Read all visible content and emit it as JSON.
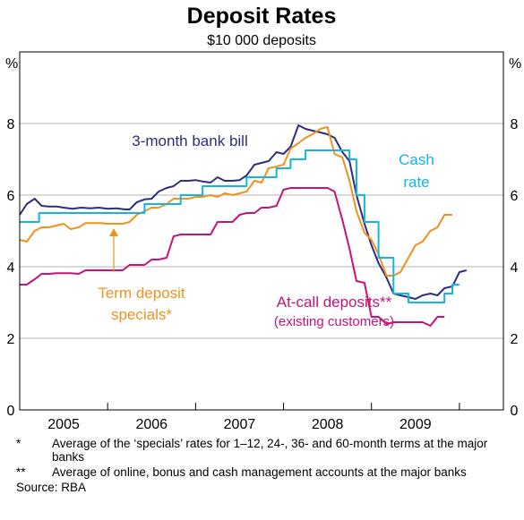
{
  "chart_data": {
    "type": "line",
    "title": "Deposit Rates",
    "subtitle": "$10 000 deposits",
    "ylabel_left": "%",
    "ylabel_right": "%",
    "ylim": [
      0,
      10
    ],
    "yticks": [
      0,
      2,
      4,
      6,
      8
    ],
    "xlim": [
      2004.5,
      2010.0
    ],
    "year_labels": [
      "2005",
      "2006",
      "2007",
      "2008",
      "2009"
    ],
    "year_label_positions": [
      2005.0,
      2006.0,
      2007.0,
      2008.0,
      2009.0
    ],
    "year_boundaries": [
      2005.5,
      2006.5,
      2007.5,
      2008.5,
      2009.5
    ],
    "grid": true,
    "colors": {
      "bank_bill": "#2e2e7e",
      "term_deposit": "#f0921e",
      "cash_rate": "#14b4e6",
      "at_call": "#c8127a",
      "grid": "#b4b4b4"
    },
    "series": [
      {
        "key": "bank_bill",
        "name": "3-month bank bill",
        "step": false,
        "points": [
          [
            2004.5,
            5.45
          ],
          [
            2004.58,
            5.75
          ],
          [
            2004.67,
            5.9
          ],
          [
            2004.75,
            5.7
          ],
          [
            2004.83,
            5.68
          ],
          [
            2004.92,
            5.68
          ],
          [
            2005.0,
            5.65
          ],
          [
            2005.1,
            5.62
          ],
          [
            2005.2,
            5.65
          ],
          [
            2005.3,
            5.63
          ],
          [
            2005.4,
            5.65
          ],
          [
            2005.5,
            5.62
          ],
          [
            2005.6,
            5.63
          ],
          [
            2005.7,
            5.6
          ],
          [
            2005.75,
            5.6
          ],
          [
            2005.83,
            5.8
          ],
          [
            2005.92,
            5.88
          ],
          [
            2006.0,
            5.9
          ],
          [
            2006.08,
            6.1
          ],
          [
            2006.17,
            6.2
          ],
          [
            2006.25,
            6.25
          ],
          [
            2006.33,
            6.4
          ],
          [
            2006.42,
            6.4
          ],
          [
            2006.5,
            6.42
          ],
          [
            2006.58,
            6.38
          ],
          [
            2006.67,
            6.35
          ],
          [
            2006.75,
            6.5
          ],
          [
            2006.83,
            6.4
          ],
          [
            2006.92,
            6.4
          ],
          [
            2007.0,
            6.42
          ],
          [
            2007.08,
            6.55
          ],
          [
            2007.17,
            6.85
          ],
          [
            2007.25,
            6.9
          ],
          [
            2007.33,
            6.95
          ],
          [
            2007.42,
            7.2
          ],
          [
            2007.5,
            7.15
          ],
          [
            2007.58,
            7.35
          ],
          [
            2007.67,
            7.95
          ],
          [
            2007.75,
            7.85
          ],
          [
            2007.83,
            7.8
          ],
          [
            2007.92,
            7.75
          ],
          [
            2008.0,
            7.7
          ],
          [
            2008.08,
            7.6
          ],
          [
            2008.17,
            7.2
          ],
          [
            2008.25,
            6.95
          ],
          [
            2008.33,
            6.0
          ],
          [
            2008.42,
            5.2
          ],
          [
            2008.5,
            4.6
          ],
          [
            2008.58,
            4.1
          ],
          [
            2008.67,
            3.7
          ],
          [
            2008.75,
            3.25
          ],
          [
            2008.83,
            3.2
          ],
          [
            2008.92,
            3.15
          ],
          [
            2009.0,
            3.1
          ],
          [
            2009.08,
            3.2
          ],
          [
            2009.17,
            3.25
          ],
          [
            2009.25,
            3.2
          ],
          [
            2009.33,
            3.4
          ],
          [
            2009.42,
            3.45
          ],
          [
            2009.5,
            3.85
          ],
          [
            2009.58,
            3.9
          ]
        ]
      },
      {
        "key": "term_deposit",
        "name": "Term deposit specials*",
        "step": false,
        "points": [
          [
            2004.5,
            4.75
          ],
          [
            2004.58,
            4.7
          ],
          [
            2004.67,
            5.0
          ],
          [
            2004.75,
            5.1
          ],
          [
            2004.83,
            5.1
          ],
          [
            2004.92,
            5.15
          ],
          [
            2005.0,
            5.2
          ],
          [
            2005.08,
            5.05
          ],
          [
            2005.17,
            5.1
          ],
          [
            2005.25,
            5.22
          ],
          [
            2005.33,
            5.22
          ],
          [
            2005.42,
            5.22
          ],
          [
            2005.5,
            5.2
          ],
          [
            2005.58,
            5.2
          ],
          [
            2005.67,
            5.2
          ],
          [
            2005.75,
            5.25
          ],
          [
            2005.83,
            5.45
          ],
          [
            2005.92,
            5.55
          ],
          [
            2006.0,
            5.65
          ],
          [
            2006.08,
            5.65
          ],
          [
            2006.17,
            5.75
          ],
          [
            2006.25,
            5.9
          ],
          [
            2006.33,
            5.9
          ],
          [
            2006.42,
            5.9
          ],
          [
            2006.5,
            5.95
          ],
          [
            2006.58,
            5.95
          ],
          [
            2006.67,
            6.0
          ],
          [
            2006.75,
            5.95
          ],
          [
            2006.83,
            6.05
          ],
          [
            2006.92,
            6.0
          ],
          [
            2007.0,
            6.05
          ],
          [
            2007.08,
            6.1
          ],
          [
            2007.17,
            6.4
          ],
          [
            2007.25,
            6.35
          ],
          [
            2007.33,
            6.75
          ],
          [
            2007.42,
            6.8
          ],
          [
            2007.5,
            6.85
          ],
          [
            2007.58,
            7.3
          ],
          [
            2007.67,
            7.45
          ],
          [
            2007.75,
            7.6
          ],
          [
            2007.83,
            7.7
          ],
          [
            2007.92,
            7.85
          ],
          [
            2008.0,
            7.9
          ],
          [
            2008.08,
            7.15
          ],
          [
            2008.17,
            7.05
          ],
          [
            2008.25,
            6.4
          ],
          [
            2008.33,
            5.55
          ],
          [
            2008.42,
            4.95
          ],
          [
            2008.5,
            4.75
          ],
          [
            2008.58,
            4.35
          ],
          [
            2008.67,
            3.75
          ],
          [
            2008.75,
            3.75
          ],
          [
            2008.83,
            3.85
          ],
          [
            2008.92,
            4.25
          ],
          [
            2009.0,
            4.6
          ],
          [
            2009.08,
            4.7
          ],
          [
            2009.17,
            5.0
          ],
          [
            2009.25,
            5.1
          ],
          [
            2009.33,
            5.45
          ],
          [
            2009.42,
            5.45
          ]
        ]
      },
      {
        "key": "cash_rate",
        "name": "Cash rate",
        "step": true,
        "points": [
          [
            2004.5,
            5.25
          ],
          [
            2004.72,
            5.5
          ],
          [
            2005.92,
            5.75
          ],
          [
            2006.33,
            6.0
          ],
          [
            2006.58,
            6.25
          ],
          [
            2007.08,
            6.5
          ],
          [
            2007.42,
            6.75
          ],
          [
            2007.58,
            7.0
          ],
          [
            2007.75,
            7.25
          ],
          [
            2008.25,
            7.0
          ],
          [
            2008.33,
            6.0
          ],
          [
            2008.42,
            5.25
          ],
          [
            2008.58,
            4.25
          ],
          [
            2008.75,
            3.25
          ],
          [
            2008.92,
            3.0
          ],
          [
            2009.33,
            3.25
          ],
          [
            2009.42,
            3.5
          ],
          [
            2009.5,
            3.5
          ]
        ]
      },
      {
        "key": "at_call",
        "name": "At-call deposits**",
        "step": false,
        "points": [
          [
            2004.5,
            3.5
          ],
          [
            2004.58,
            3.5
          ],
          [
            2004.67,
            3.65
          ],
          [
            2004.75,
            3.8
          ],
          [
            2004.83,
            3.8
          ],
          [
            2004.92,
            3.82
          ],
          [
            2005.0,
            3.82
          ],
          [
            2005.08,
            3.82
          ],
          [
            2005.17,
            3.8
          ],
          [
            2005.25,
            3.9
          ],
          [
            2005.33,
            3.9
          ],
          [
            2005.42,
            3.9
          ],
          [
            2005.5,
            3.9
          ],
          [
            2005.58,
            3.9
          ],
          [
            2005.67,
            3.9
          ],
          [
            2005.75,
            4.05
          ],
          [
            2005.83,
            4.05
          ],
          [
            2005.92,
            4.05
          ],
          [
            2006.0,
            4.2
          ],
          [
            2006.08,
            4.2
          ],
          [
            2006.17,
            4.25
          ],
          [
            2006.25,
            4.85
          ],
          [
            2006.33,
            4.9
          ],
          [
            2006.42,
            4.9
          ],
          [
            2006.5,
            4.9
          ],
          [
            2006.58,
            4.9
          ],
          [
            2006.67,
            4.9
          ],
          [
            2006.75,
            5.25
          ],
          [
            2006.83,
            5.25
          ],
          [
            2006.92,
            5.25
          ],
          [
            2007.0,
            5.45
          ],
          [
            2007.08,
            5.5
          ],
          [
            2007.17,
            5.5
          ],
          [
            2007.25,
            5.65
          ],
          [
            2007.33,
            5.65
          ],
          [
            2007.42,
            5.7
          ],
          [
            2007.5,
            6.15
          ],
          [
            2007.58,
            6.2
          ],
          [
            2007.67,
            6.2
          ],
          [
            2007.75,
            6.2
          ],
          [
            2007.83,
            6.2
          ],
          [
            2007.92,
            6.2
          ],
          [
            2008.0,
            6.2
          ],
          [
            2008.08,
            6.1
          ],
          [
            2008.17,
            5.3
          ],
          [
            2008.25,
            4.5
          ],
          [
            2008.33,
            3.6
          ],
          [
            2008.42,
            3.55
          ],
          [
            2008.5,
            2.6
          ],
          [
            2008.58,
            2.6
          ],
          [
            2008.67,
            2.4
          ],
          [
            2008.75,
            2.45
          ],
          [
            2008.83,
            2.45
          ],
          [
            2008.92,
            2.45
          ],
          [
            2009.0,
            2.45
          ],
          [
            2009.08,
            2.45
          ],
          [
            2009.17,
            2.35
          ],
          [
            2009.25,
            2.6
          ],
          [
            2009.33,
            2.6
          ]
        ]
      }
    ],
    "annotations": [
      {
        "key": "bank_bill",
        "lines": [
          "3-month bank bill"
        ],
        "color": "#2e2e7e"
      },
      {
        "key": "cash_rate",
        "lines": [
          "Cash",
          "rate"
        ],
        "color": "#14b4e6"
      },
      {
        "key": "term_deposit",
        "lines": [
          "Term deposit",
          "specials*"
        ],
        "color": "#f0921e"
      },
      {
        "key": "at_call",
        "lines": [
          "At-call deposits**",
          "(existing customers)"
        ],
        "color": "#c8127a"
      }
    ],
    "footnotes": [
      {
        "mark": "*",
        "text": "Average of the ‘specials’ rates for 1–12, 24-, 36- and 60-month terms at the major banks"
      },
      {
        "mark": "**",
        "text": "Average of online, bonus and cash management accounts at the major banks"
      }
    ],
    "source": "Source: RBA"
  }
}
